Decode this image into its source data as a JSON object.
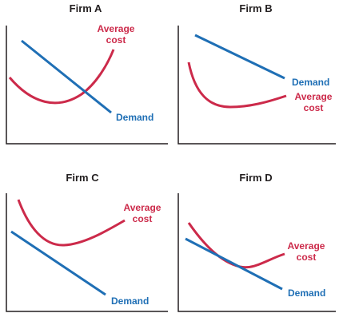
{
  "colors": {
    "average_cost": "#cc2a4a",
    "demand": "#1f6fb5",
    "axis": "#231f20"
  },
  "panels": [
    {
      "title": "Firm A",
      "demand_label": "Demand",
      "cost_label_line1": "Average",
      "cost_label_line2": "cost"
    },
    {
      "title": "Firm B",
      "demand_label": "Demand",
      "cost_label_line1": "Average",
      "cost_label_line2": "cost"
    },
    {
      "title": "Firm C",
      "demand_label": "Demand",
      "cost_label_line1": "Average",
      "cost_label_line2": "cost"
    },
    {
      "title": "Firm D",
      "demand_label": "Demand",
      "cost_label_line1": "Average",
      "cost_label_line2": "cost"
    }
  ]
}
